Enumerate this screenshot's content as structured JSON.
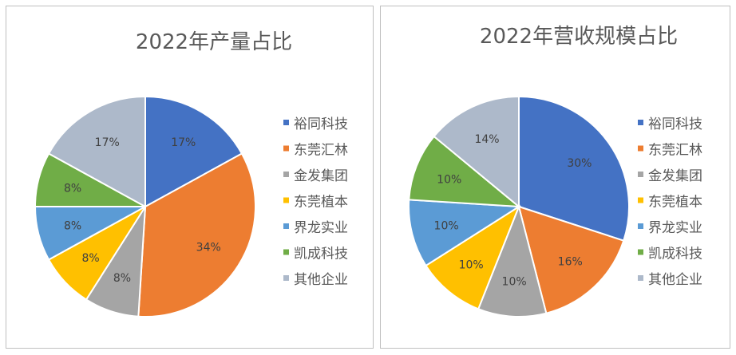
{
  "chart_data": [
    {
      "type": "pie",
      "title": "2022年产量占比",
      "categories": [
        "裕同科技",
        "东莞汇林",
        "金发集团",
        "东莞植本",
        "界龙实业",
        "凯成科技",
        "其他企业"
      ],
      "values": [
        17,
        34,
        8,
        8,
        8,
        8,
        17
      ],
      "data_labels": [
        "17%",
        "34%",
        "8%",
        "8%",
        "8%",
        "8%",
        "17%"
      ],
      "colors": [
        "#4472C4",
        "#ED7D31",
        "#A5A5A5",
        "#FFC000",
        "#5B9BD5",
        "#70AD47",
        "#ADB9CA"
      ],
      "legend": {
        "position": "right",
        "labels": [
          "裕同科技",
          "东莞汇林",
          "金发集团",
          "东莞植本",
          "界龙实业",
          "凯成科技",
          "其他企业"
        ]
      }
    },
    {
      "type": "pie",
      "title": "2022年营收规模占比",
      "categories": [
        "裕同科技",
        "东莞汇林",
        "金发集团",
        "东莞植本",
        "界龙实业",
        "凯成科技",
        "其他企业"
      ],
      "values": [
        30,
        16,
        10,
        10,
        10,
        10,
        14
      ],
      "data_labels": [
        "30%",
        "16%",
        "10%",
        "10%",
        "10%",
        "10%",
        "14%"
      ],
      "colors": [
        "#4472C4",
        "#ED7D31",
        "#A5A5A5",
        "#FFC000",
        "#5B9BD5",
        "#70AD47",
        "#ADB9CA"
      ],
      "legend": {
        "position": "right",
        "labels": [
          "裕同科技",
          "东莞汇林",
          "金发集团",
          "东莞植本",
          "界龙实业",
          "凯成科技",
          "其他企业"
        ]
      }
    }
  ]
}
